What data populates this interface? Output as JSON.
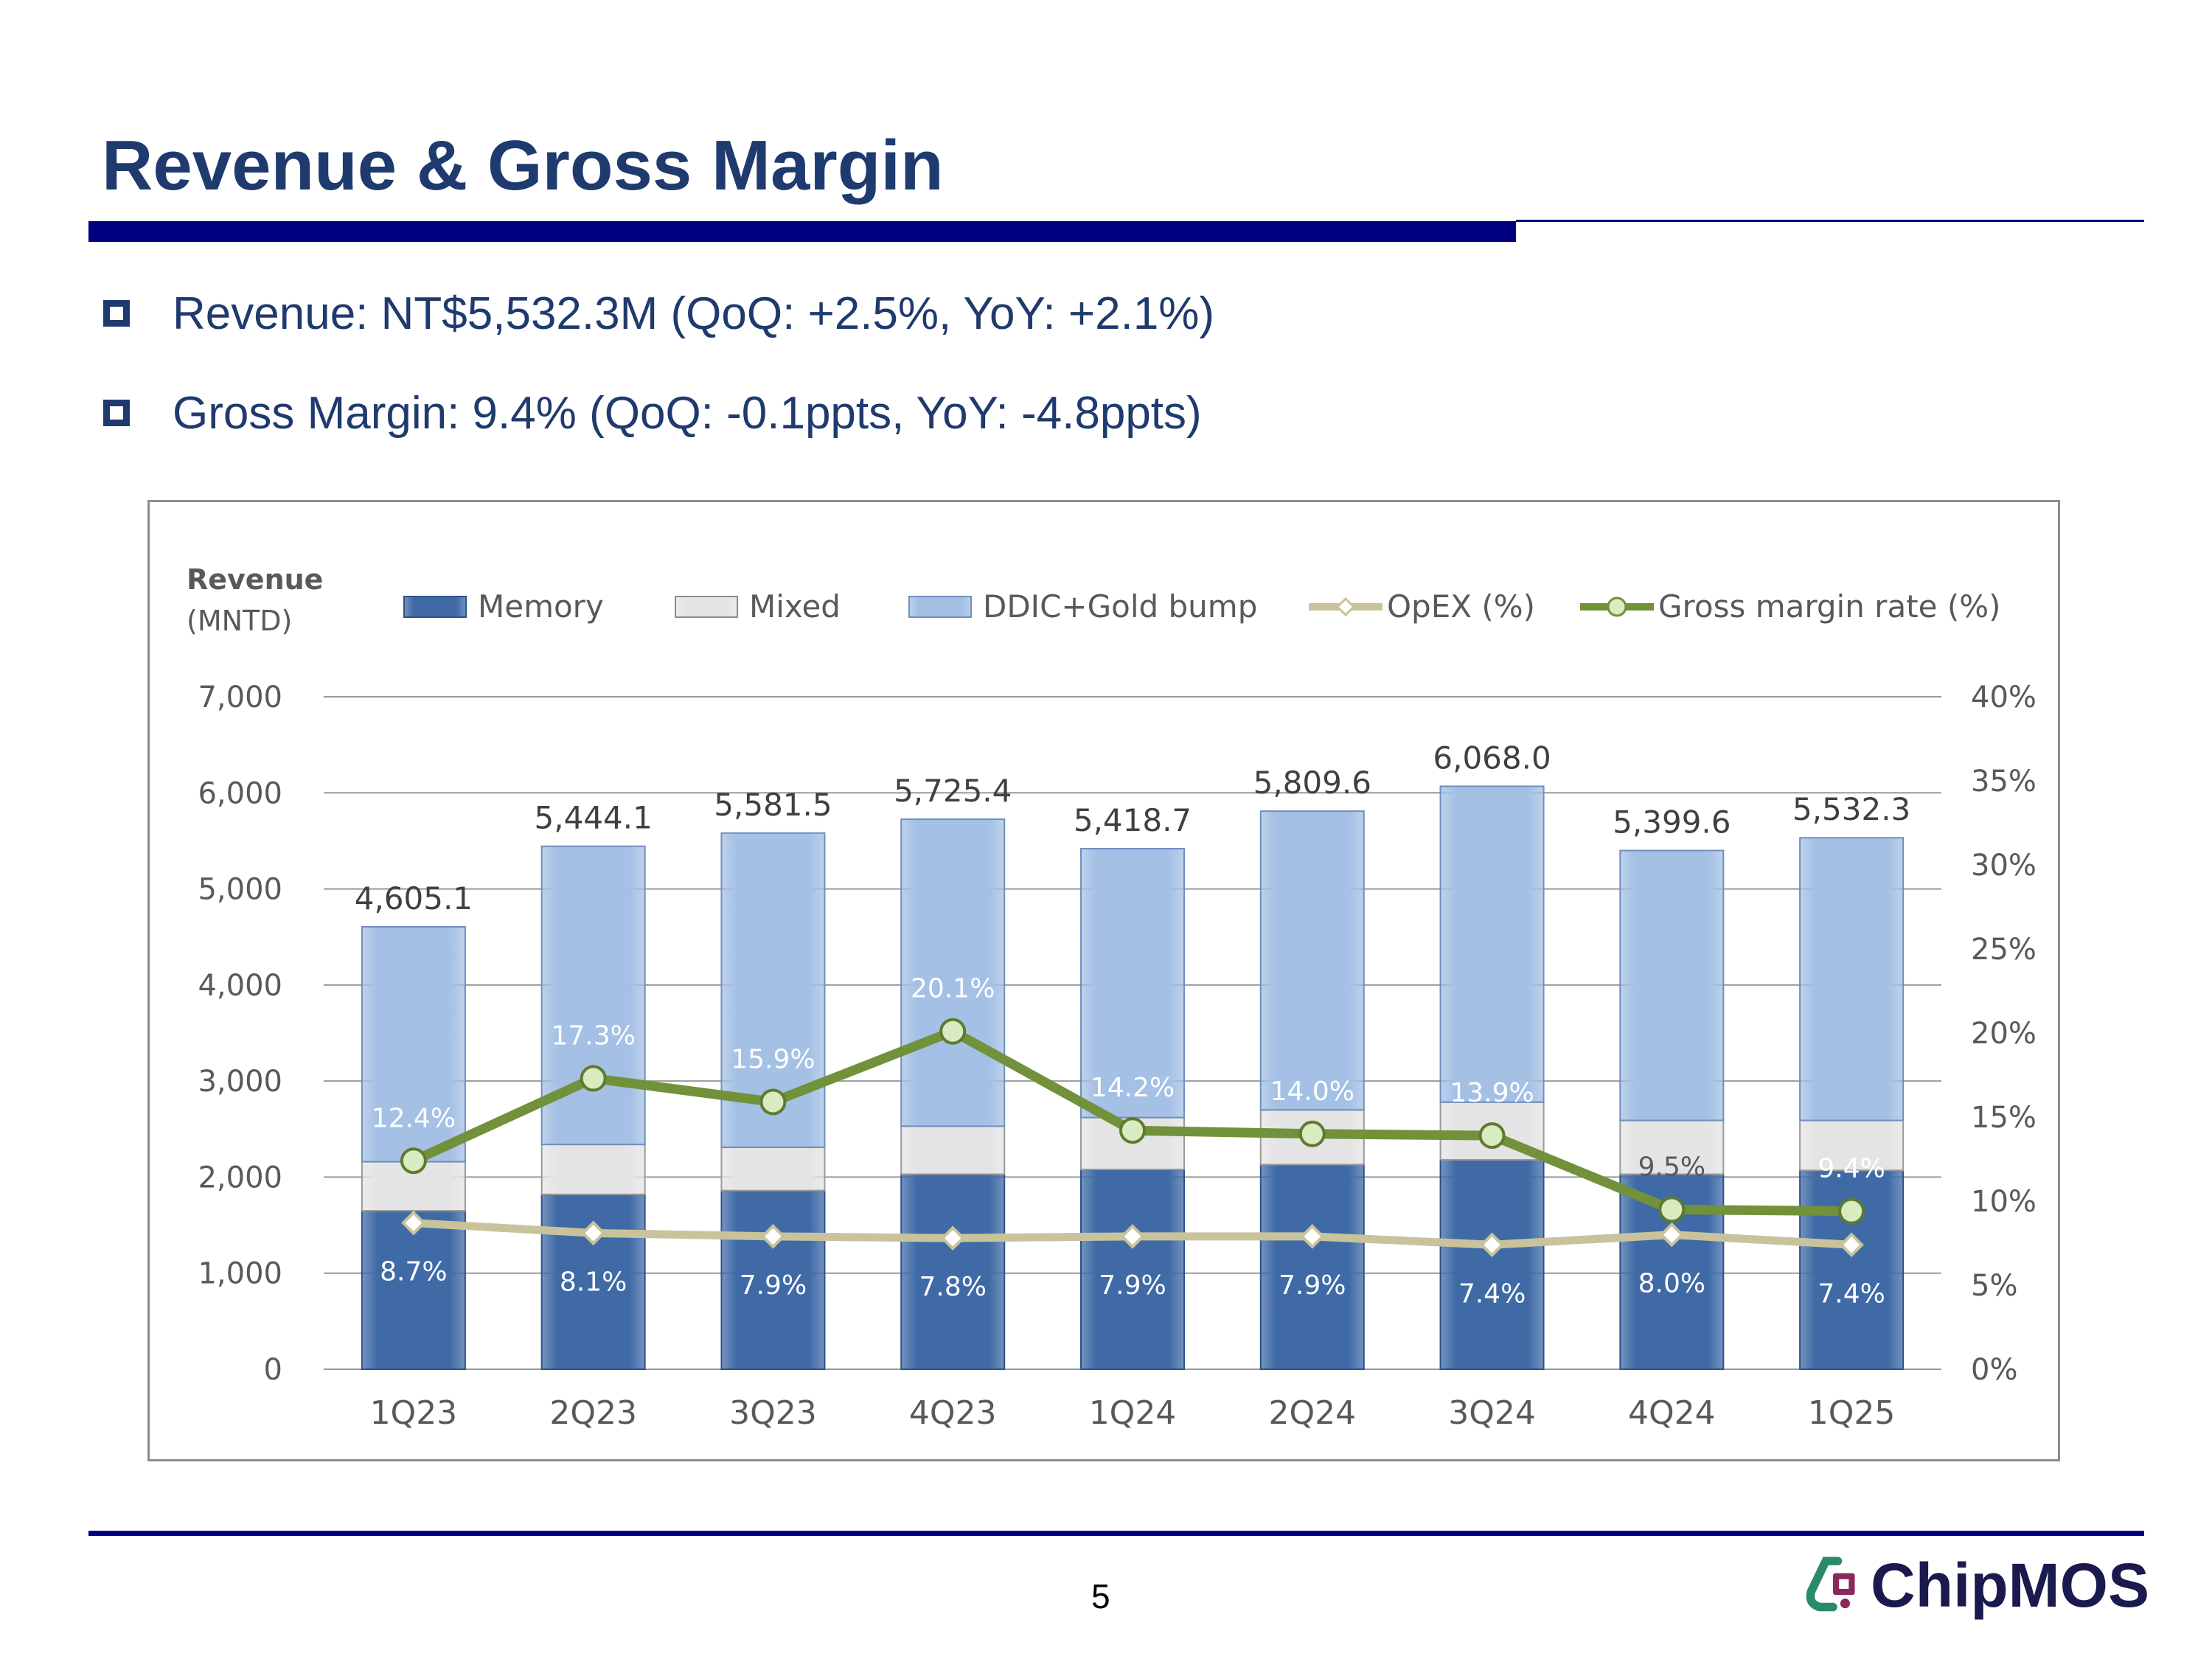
{
  "page": {
    "title": "Revenue & Gross Margin",
    "bullets": [
      "Revenue: NT$5,532.3M (QoQ: +2.5%, YoY: +2.1%)",
      "Gross Margin: 9.4% (QoQ: -0.1ppts, YoY: -4.8ppts)"
    ],
    "page_number": "5",
    "logo_text": "ChipMOS"
  },
  "colors": {
    "memory": "#3f6aa6",
    "mixed": "#e4e4e4",
    "ddic": "#a4c0e4",
    "opex": "#c9c39c",
    "gross_margin": "#71913a",
    "title": "#1f3a6e",
    "rule": "#000080"
  },
  "chart_data": {
    "type": "bar",
    "stacked": true,
    "y_axis_title": [
      "Revenue",
      "(MNTD)"
    ],
    "categories": [
      "1Q23",
      "2Q23",
      "3Q23",
      "4Q23",
      "1Q24",
      "2Q24",
      "3Q24",
      "4Q24",
      "1Q25"
    ],
    "ylim": [
      0,
      7000
    ],
    "yticks": [
      0,
      1000,
      2000,
      3000,
      4000,
      5000,
      6000,
      7000
    ],
    "ytick_labels": [
      "0",
      "1,000",
      "2,000",
      "3,000",
      "4,000",
      "5,000",
      "6,000",
      "7,000"
    ],
    "y2lim": [
      0,
      40
    ],
    "y2ticks": [
      0,
      5,
      10,
      15,
      20,
      25,
      30,
      35,
      40
    ],
    "y2tick_labels": [
      "0%",
      "5%",
      "10%",
      "15%",
      "20%",
      "25%",
      "30%",
      "35%",
      "40%"
    ],
    "series": [
      {
        "name": "Memory",
        "type": "bar",
        "axis": "left",
        "values": [
          1650,
          1820,
          1860,
          2030,
          2080,
          2130,
          2180,
          2030,
          2070
        ]
      },
      {
        "name": "Mixed",
        "type": "bar",
        "axis": "left",
        "values": [
          510,
          520,
          450,
          500,
          540,
          570,
          600,
          560,
          520
        ]
      },
      {
        "name": "DDIC+Gold bump",
        "type": "bar",
        "axis": "left",
        "values": [
          2445.1,
          3104.1,
          3271.5,
          3195.4,
          2798.7,
          3109.6,
          3288.0,
          2809.6,
          2942.3
        ]
      },
      {
        "name": "OpEX (%)",
        "type": "line",
        "axis": "right",
        "values": [
          8.7,
          8.1,
          7.9,
          7.8,
          7.9,
          7.9,
          7.4,
          8.0,
          7.4
        ],
        "labels": [
          "8.7%",
          "8.1%",
          "7.9%",
          "7.8%",
          "7.9%",
          "7.9%",
          "7.4%",
          "8.0%",
          "7.4%"
        ]
      },
      {
        "name": "Gross margin rate (%)",
        "type": "line",
        "axis": "right",
        "values": [
          12.4,
          17.3,
          15.9,
          20.1,
          14.2,
          14.0,
          13.9,
          9.5,
          9.4
        ],
        "labels": [
          "12.4%",
          "17.3%",
          "15.9%",
          "20.1%",
          "14.2%",
          "14.0%",
          "13.9%",
          "9.5%",
          "9.4%"
        ]
      }
    ],
    "totals": [
      4605.1,
      5444.1,
      5581.5,
      5725.4,
      5418.7,
      5809.6,
      6068.0,
      5399.6,
      5532.3
    ],
    "total_labels": [
      "4,605.1",
      "5,444.1",
      "5,581.5",
      "5,725.4",
      "5,418.7",
      "5,809.6",
      "6,068.0",
      "5,399.6",
      "5,532.3"
    ],
    "legend": [
      "Memory",
      "Mixed",
      "DDIC+Gold bump",
      "OpEX (%)",
      "Gross margin rate (%)"
    ],
    "legend_position": "top",
    "grid": true
  }
}
